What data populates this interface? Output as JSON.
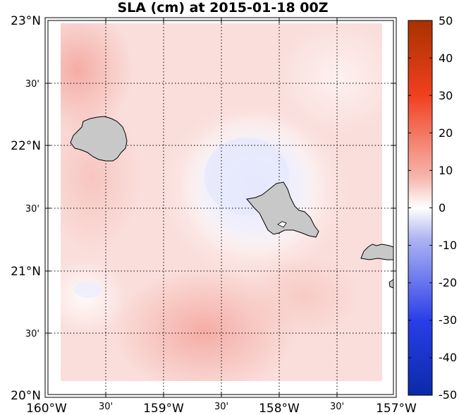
{
  "title": "SLA (cm) at 2015-01-18 00Z",
  "lat_labels": [
    "23°N",
    "30'",
    "22°N",
    "30'",
    "21°N",
    "30'",
    "20°N"
  ],
  "lon_labels": [
    "160°W",
    "30'",
    "159°W",
    "30'",
    "158°W",
    "30'",
    "157°W"
  ],
  "colorbar": {
    "ticks": [
      "50",
      "40",
      "30",
      "20",
      "10",
      "0",
      "-10",
      "-20",
      "-30",
      "-40",
      "-50"
    ],
    "range": [
      -50,
      50
    ],
    "colormap": "diverging blue-white-red"
  },
  "colors": {
    "max": "#a83200",
    "pos_strong": "#f04020",
    "pos_light": "#f6b7ae",
    "zero": "#ffffff",
    "neg_light": "#b0b6f2",
    "neg_strong": "#2a3ee8",
    "min": "#0a2aa8",
    "land": "#c8c8c8"
  },
  "map": {
    "lon_range": [
      "160°W",
      "157°W"
    ],
    "lat_range": [
      "20°N",
      "23°N"
    ],
    "islands": [
      "Kauai",
      "Oahu",
      "Molokai"
    ]
  }
}
